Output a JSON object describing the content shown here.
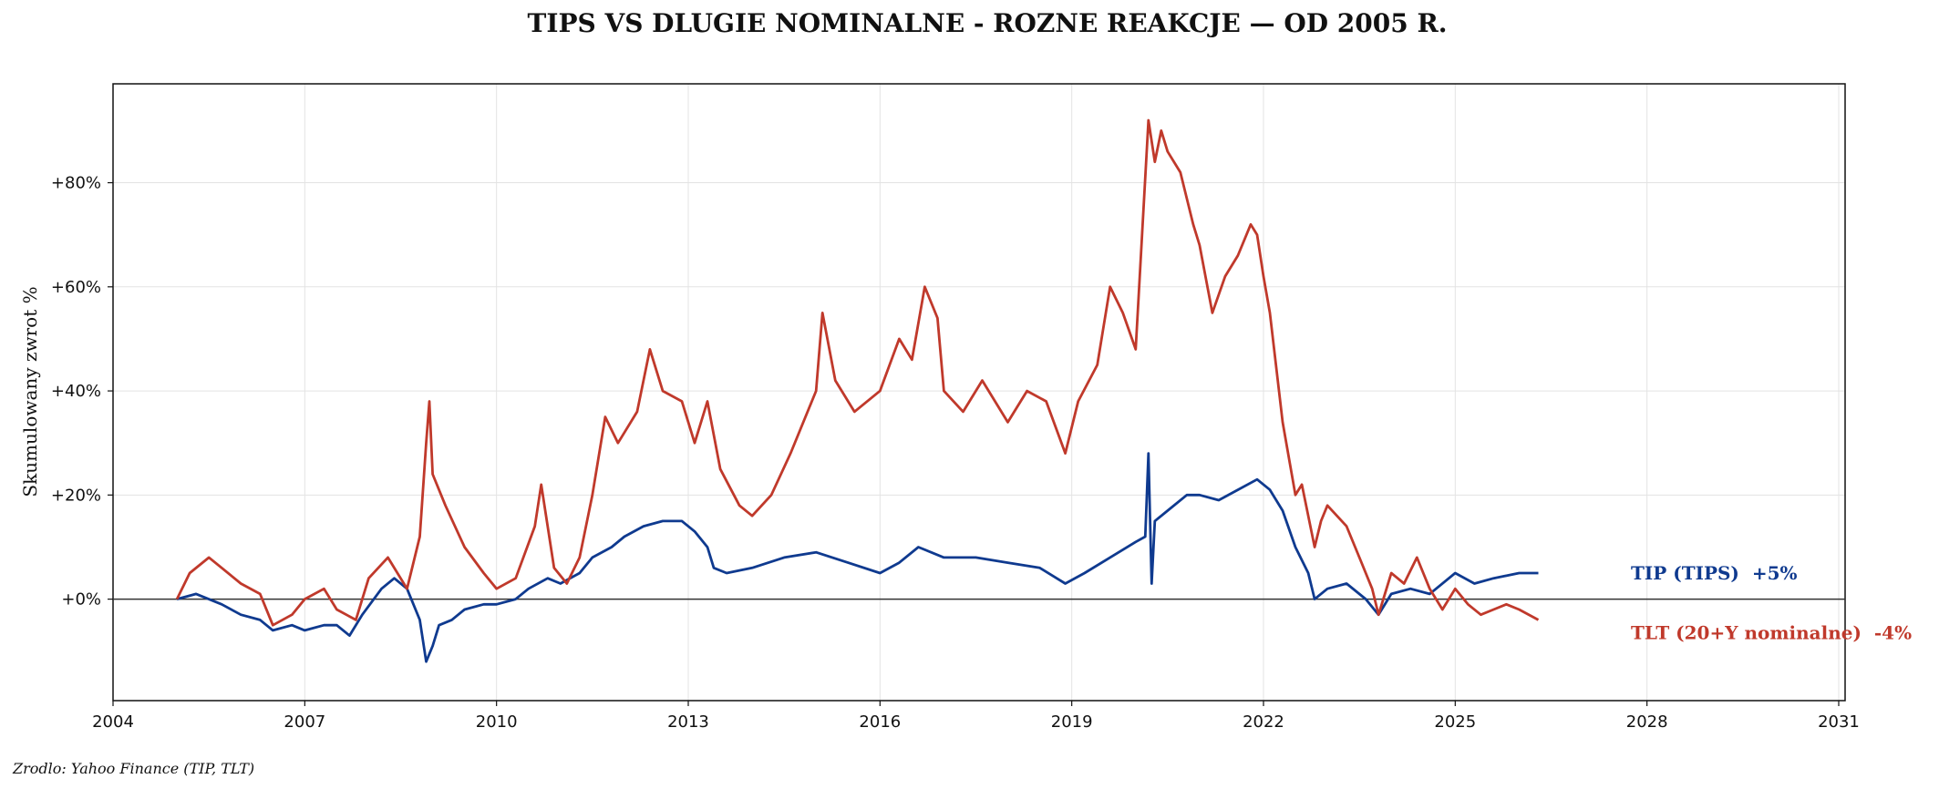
{
  "chart_data": {
    "type": "line",
    "title": "TIPS VS DLUGIE NOMINALNE - ROZNE REAKCJE — OD 2005 R.",
    "ylabel": "Skumulowany zwrot %",
    "xlabel": "",
    "source": "Zrodlo: Yahoo Finance (TIP, TLT)",
    "xlim": [
      2004.0,
      2031.1
    ],
    "ylim": [
      -19.5,
      99
    ],
    "x_ticks": [
      2004,
      2007,
      2010,
      2013,
      2016,
      2019,
      2022,
      2025,
      2028,
      2031
    ],
    "y_ticks": [
      0,
      20,
      40,
      60,
      80
    ],
    "y_tick_labels": [
      "+0%",
      "+20%",
      "+40%",
      "+60%",
      "+80%"
    ],
    "grid": true,
    "zero_line": true,
    "series": [
      {
        "name": "TIP (TIPS)",
        "color": "#0f3a8f",
        "end_label": "TIP (TIPS)  +5%",
        "x": [
          2005.0,
          2005.3,
          2005.7,
          2006.0,
          2006.3,
          2006.5,
          2006.8,
          2007.0,
          2007.3,
          2007.5,
          2007.7,
          2007.9,
          2008.2,
          2008.4,
          2008.6,
          2008.8,
          2008.9,
          2009.0,
          2009.1,
          2009.3,
          2009.5,
          2009.8,
          2010.0,
          2010.3,
          2010.5,
          2010.8,
          2011.0,
          2011.3,
          2011.5,
          2011.8,
          2012.0,
          2012.3,
          2012.6,
          2012.9,
          2013.1,
          2013.3,
          2013.4,
          2013.6,
          2014.0,
          2014.5,
          2015.0,
          2015.5,
          2016.0,
          2016.3,
          2016.6,
          2017.0,
          2017.5,
          2018.0,
          2018.5,
          2018.9,
          2019.2,
          2019.6,
          2020.0,
          2020.15,
          2020.2,
          2020.25,
          2020.3,
          2020.5,
          2020.8,
          2021.0,
          2021.3,
          2021.6,
          2021.9,
          2022.1,
          2022.3,
          2022.5,
          2022.7,
          2022.8,
          2023.0,
          2023.3,
          2023.6,
          2023.8,
          2024.0,
          2024.3,
          2024.6,
          2025.0,
          2025.3,
          2025.6,
          2026.0,
          2026.3
        ],
        "y": [
          0,
          1,
          -1,
          -3,
          -4,
          -6,
          -5,
          -6,
          -5,
          -5,
          -7,
          -3,
          2,
          4,
          2,
          -4,
          -12,
          -9,
          -5,
          -4,
          -2,
          -1,
          -1,
          0,
          2,
          4,
          3,
          5,
          8,
          10,
          12,
          14,
          15,
          15,
          13,
          10,
          6,
          5,
          6,
          8,
          9,
          7,
          5,
          7,
          10,
          8,
          8,
          7,
          6,
          3,
          5,
          8,
          11,
          12,
          28,
          3,
          15,
          17,
          20,
          20,
          19,
          21,
          23,
          21,
          17,
          10,
          5,
          0,
          2,
          3,
          0,
          -3,
          1,
          2,
          1,
          5,
          3,
          4,
          5,
          5
        ]
      },
      {
        "name": "TLT (20+Y nominalne)",
        "color": "#c0392b",
        "end_label": "TLT (20+Y nominalne)  -4%",
        "x": [
          2005.0,
          2005.2,
          2005.5,
          2005.7,
          2006.0,
          2006.3,
          2006.5,
          2006.8,
          2007.0,
          2007.3,
          2007.5,
          2007.8,
          2008.0,
          2008.3,
          2008.6,
          2008.8,
          2008.9,
          2008.95,
          2009.0,
          2009.2,
          2009.5,
          2009.8,
          2010.0,
          2010.3,
          2010.6,
          2010.7,
          2010.9,
          2011.1,
          2011.3,
          2011.5,
          2011.7,
          2011.9,
          2012.0,
          2012.2,
          2012.4,
          2012.6,
          2012.9,
          2013.1,
          2013.3,
          2013.5,
          2013.8,
          2014.0,
          2014.3,
          2014.6,
          2015.0,
          2015.1,
          2015.3,
          2015.6,
          2016.0,
          2016.3,
          2016.5,
          2016.7,
          2016.9,
          2017.0,
          2017.3,
          2017.6,
          2018.0,
          2018.3,
          2018.6,
          2018.9,
          2019.1,
          2019.4,
          2019.6,
          2019.8,
          2020.0,
          2020.1,
          2020.2,
          2020.3,
          2020.4,
          2020.5,
          2020.7,
          2020.9,
          2021.0,
          2021.2,
          2021.4,
          2021.6,
          2021.8,
          2021.9,
          2022.0,
          2022.1,
          2022.3,
          2022.5,
          2022.6,
          2022.8,
          2022.9,
          2023.0,
          2023.3,
          2023.5,
          2023.7,
          2023.8,
          2024.0,
          2024.2,
          2024.4,
          2024.6,
          2024.8,
          2025.0,
          2025.2,
          2025.4,
          2025.6,
          2025.8,
          2026.0,
          2026.3
        ],
        "y": [
          0,
          5,
          8,
          6,
          3,
          1,
          -5,
          -3,
          0,
          2,
          -2,
          -4,
          4,
          8,
          2,
          12,
          30,
          38,
          24,
          18,
          10,
          5,
          2,
          4,
          14,
          22,
          6,
          3,
          8,
          20,
          35,
          30,
          32,
          36,
          48,
          40,
          38,
          30,
          38,
          25,
          18,
          16,
          20,
          28,
          40,
          55,
          42,
          36,
          40,
          50,
          46,
          60,
          54,
          40,
          36,
          42,
          34,
          40,
          38,
          28,
          38,
          45,
          60,
          55,
          48,
          70,
          92,
          84,
          90,
          86,
          82,
          72,
          68,
          55,
          62,
          66,
          72,
          70,
          62,
          55,
          34,
          20,
          22,
          10,
          15,
          18,
          14,
          8,
          2,
          -3,
          5,
          3,
          8,
          2,
          -2,
          2,
          -1,
          -3,
          -2,
          -1,
          -2,
          -4
        ]
      }
    ]
  }
}
